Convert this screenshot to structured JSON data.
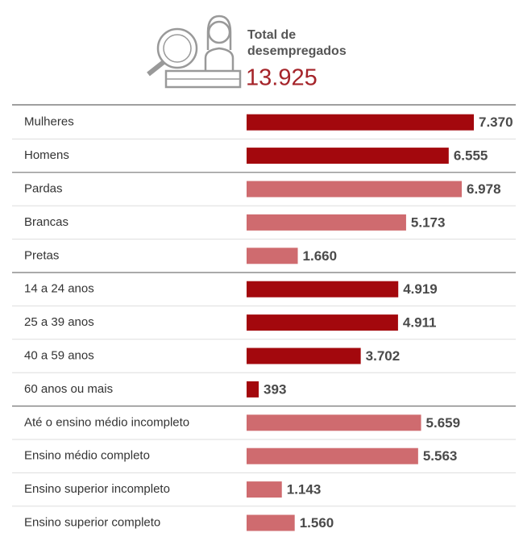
{
  "chart_data": {
    "type": "bar",
    "total_label": "Total de desempregados",
    "total_value": "13.925",
    "categories": [
      "Mulheres",
      "Homens",
      "Pardas",
      "Brancas",
      "Pretas",
      "14 a 24 anos",
      "25 a 39 anos",
      "40 a 59 anos",
      "60 anos ou mais",
      "Até o ensino médio incompleto",
      "Ensino médio completo",
      "Ensino superior incompleto",
      "Ensino superior completo"
    ],
    "values": [
      7370,
      6555,
      6978,
      5173,
      1660,
      4919,
      4911,
      3702,
      393,
      5659,
      5563,
      1143,
      1560
    ],
    "value_labels": [
      "7.370",
      "6.555",
      "6.978",
      "5.173",
      "1.660",
      "4.919",
      "4.911",
      "3.702",
      "393",
      "5.659",
      "5.563",
      "1.143",
      "1.560"
    ],
    "colors": [
      "#a3080d",
      "#a3080d",
      "#cf6b6f",
      "#cf6b6f",
      "#cf6b6f",
      "#a3080d",
      "#a3080d",
      "#a3080d",
      "#a3080d",
      "#cf6b6f",
      "#cf6b6f",
      "#cf6b6f",
      "#cf6b6f"
    ]
  }
}
